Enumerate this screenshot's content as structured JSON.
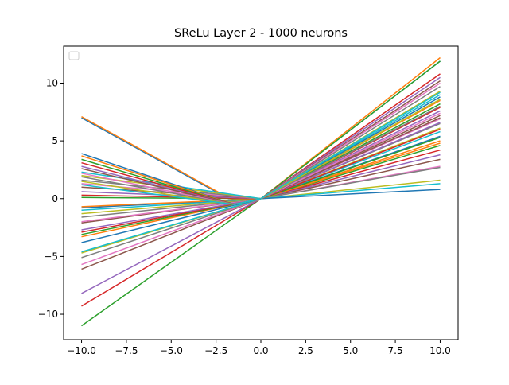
{
  "chart_data": {
    "type": "line",
    "title": "SReLu Layer 2 - 1000 neurons",
    "xlabel": "",
    "ylabel": "",
    "xlim": [
      -11.0,
      11.0
    ],
    "ylim": [
      -12.2,
      13.2
    ],
    "xticks": [
      -10.0,
      -7.5,
      -5.0,
      -2.5,
      0.0,
      2.5,
      5.0,
      7.5,
      10.0
    ],
    "xtick_labels": [
      "−10.0",
      "−7.5",
      "−5.0",
      "−2.5",
      "0.0",
      "2.5",
      "5.0",
      "7.5",
      "10.0"
    ],
    "yticks": [
      -10,
      -5,
      0,
      5,
      10
    ],
    "ytick_labels": [
      "−10",
      "−5",
      "0",
      "5",
      "10"
    ],
    "grid": false,
    "legend": {
      "placement": "top-left",
      "entries": []
    },
    "colors": [
      "#1f77b4",
      "#ff7f0e",
      "#2ca02c",
      "#d62728",
      "#9467bd",
      "#8c564b",
      "#e377c2",
      "#7f7f7f",
      "#bcbd22",
      "#17becf"
    ],
    "series": [
      {
        "values": [
          [
            -10,
            7.0
          ],
          [
            -1.8,
            0.0
          ],
          [
            0,
            0.0
          ],
          [
            10,
            11.9
          ]
        ]
      },
      {
        "values": [
          [
            -10,
            7.1
          ],
          [
            -1.6,
            -0.1
          ],
          [
            0,
            0.0
          ],
          [
            10,
            12.2
          ]
        ]
      },
      {
        "values": [
          [
            -10,
            -11.0
          ],
          [
            0,
            0.0
          ],
          [
            10,
            11.9
          ]
        ]
      },
      {
        "values": [
          [
            -10,
            -9.3
          ],
          [
            0,
            0.0
          ],
          [
            10,
            10.8
          ]
        ]
      },
      {
        "values": [
          [
            -10,
            -8.2
          ],
          [
            0,
            0.0
          ],
          [
            10,
            10.5
          ]
        ]
      },
      {
        "values": [
          [
            -10,
            -6.1
          ],
          [
            0,
            0.0
          ],
          [
            10,
            10.2
          ]
        ]
      },
      {
        "values": [
          [
            -10,
            -5.7
          ],
          [
            0,
            0.0
          ],
          [
            10,
            10.0
          ]
        ]
      },
      {
        "values": [
          [
            -10,
            -5.1
          ],
          [
            0,
            0.0
          ],
          [
            10,
            9.7
          ]
        ]
      },
      {
        "values": [
          [
            -10,
            -4.7
          ],
          [
            0,
            0.0
          ],
          [
            10,
            9.3
          ]
        ]
      },
      {
        "values": [
          [
            -10,
            -4.6
          ],
          [
            0,
            0.0
          ],
          [
            10,
            9.0
          ]
        ]
      },
      {
        "values": [
          [
            -10,
            -3.8
          ],
          [
            0,
            0.0
          ],
          [
            10,
            8.8
          ]
        ]
      },
      {
        "values": [
          [
            -10,
            -3.3
          ],
          [
            0,
            0.0
          ],
          [
            10,
            8.5
          ]
        ]
      },
      {
        "values": [
          [
            -10,
            -3.1
          ],
          [
            0,
            0.0
          ],
          [
            10,
            8.2
          ]
        ]
      },
      {
        "values": [
          [
            -10,
            -2.9
          ],
          [
            0,
            0.0
          ],
          [
            10,
            7.9
          ]
        ]
      },
      {
        "values": [
          [
            -10,
            -2.7
          ],
          [
            0,
            0.0
          ],
          [
            10,
            7.6
          ]
        ]
      },
      {
        "values": [
          [
            -10,
            -2.1
          ],
          [
            0,
            0.0
          ],
          [
            10,
            7.2
          ]
        ]
      },
      {
        "values": [
          [
            -10,
            -2.0
          ],
          [
            0,
            0.0
          ],
          [
            10,
            6.9
          ]
        ]
      },
      {
        "values": [
          [
            -10,
            -1.6
          ],
          [
            0,
            0.0
          ],
          [
            10,
            6.5
          ]
        ]
      },
      {
        "values": [
          [
            -10,
            -1.3
          ],
          [
            0,
            0.0
          ],
          [
            10,
            6.1
          ]
        ]
      },
      {
        "values": [
          [
            -10,
            -1.0
          ],
          [
            0,
            0.0
          ],
          [
            10,
            5.8
          ]
        ]
      },
      {
        "values": [
          [
            -10,
            -0.8
          ],
          [
            0,
            0.0
          ],
          [
            10,
            5.4
          ]
        ]
      },
      {
        "values": [
          [
            -10,
            -0.7
          ],
          [
            0,
            0.0
          ],
          [
            10,
            5.0
          ]
        ]
      },
      {
        "values": [
          [
            -10,
            0.1
          ],
          [
            0,
            0.0
          ],
          [
            10,
            4.6
          ]
        ]
      },
      {
        "values": [
          [
            -10,
            0.3
          ],
          [
            0,
            0.0
          ],
          [
            10,
            4.2
          ]
        ]
      },
      {
        "values": [
          [
            -10,
            0.6
          ],
          [
            0,
            0.0
          ],
          [
            10,
            3.8
          ]
        ]
      },
      {
        "values": [
          [
            -10,
            1.0
          ],
          [
            0,
            0.0
          ],
          [
            10,
            3.4
          ]
        ]
      },
      {
        "values": [
          [
            -10,
            1.3
          ],
          [
            0,
            0.0
          ],
          [
            10,
            2.8
          ]
        ]
      },
      {
        "values": [
          [
            -10,
            1.6
          ],
          [
            0,
            0.0
          ],
          [
            10,
            2.7
          ]
        ]
      },
      {
        "values": [
          [
            -10,
            2.0
          ],
          [
            0,
            0.0
          ],
          [
            10,
            1.6
          ]
        ]
      },
      {
        "values": [
          [
            -10,
            2.3
          ],
          [
            0,
            0.0
          ],
          [
            10,
            1.3
          ]
        ]
      },
      {
        "values": [
          [
            -10,
            3.9
          ],
          [
            -1.5,
            -0.5
          ],
          [
            0,
            0.0
          ],
          [
            10,
            0.8
          ]
        ]
      },
      {
        "values": [
          [
            -10,
            3.7
          ],
          [
            -1.5,
            -0.5
          ],
          [
            0,
            0.0
          ],
          [
            10,
            4.8
          ]
        ]
      },
      {
        "values": [
          [
            -10,
            3.4
          ],
          [
            -1.5,
            -0.5
          ],
          [
            0,
            0.0
          ],
          [
            10,
            5.3
          ]
        ]
      },
      {
        "values": [
          [
            -10,
            3.1
          ],
          [
            -1.5,
            -0.5
          ],
          [
            0,
            0.0
          ],
          [
            10,
            6.0
          ]
        ]
      },
      {
        "values": [
          [
            -10,
            2.8
          ],
          [
            -1.5,
            -0.5
          ],
          [
            0,
            0.0
          ],
          [
            10,
            6.6
          ]
        ]
      },
      {
        "values": [
          [
            -10,
            2.6
          ],
          [
            -1.5,
            -0.5
          ],
          [
            0,
            0.0
          ],
          [
            10,
            7.0
          ]
        ]
      },
      {
        "values": [
          [
            -10,
            2.2
          ],
          [
            -1.5,
            -0.5
          ],
          [
            0,
            0.0
          ],
          [
            10,
            7.4
          ]
        ]
      },
      {
        "values": [
          [
            -10,
            1.9
          ],
          [
            -1.5,
            -0.5
          ],
          [
            0,
            0.0
          ],
          [
            10,
            8.0
          ]
        ]
      },
      {
        "values": [
          [
            -10,
            1.5
          ],
          [
            -1.5,
            -0.5
          ],
          [
            0,
            0.0
          ],
          [
            10,
            8.6
          ]
        ]
      },
      {
        "values": [
          [
            -10,
            1.2
          ],
          [
            -1.5,
            -0.5
          ],
          [
            0,
            0.0
          ],
          [
            10,
            9.2
          ]
        ]
      }
    ]
  }
}
